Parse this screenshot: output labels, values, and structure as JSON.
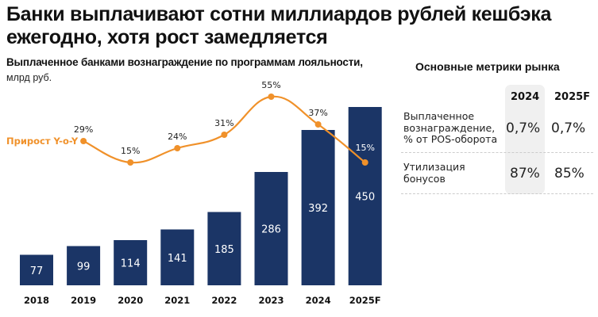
{
  "header": {
    "title": "Банки выплачивают сотни миллиардов рублей кешбэка ежегодно, хотя рост замедляется",
    "subtitle": "Выплаченное банками вознаграждение по программам лояльности,",
    "unit": "млрд руб."
  },
  "chart_data": {
    "type": "bar",
    "title": "Выплаченное банками вознаграждение по программам лояльности, млрд руб.",
    "xlabel": "",
    "ylabel": "млрд руб.",
    "categories": [
      "2018",
      "2019",
      "2020",
      "2021",
      "2022",
      "2023",
      "2024",
      "2025F"
    ],
    "series": [
      {
        "name": "Вознаграждение",
        "type": "bar",
        "values": [
          77,
          99,
          114,
          141,
          185,
          286,
          392,
          450
        ],
        "labels": [
          "77",
          "99",
          "114",
          "141",
          "185",
          "286",
          "392",
          "450"
        ],
        "color": "#1b3566"
      },
      {
        "name": "Прирост Y-o-Y",
        "type": "line",
        "values": [
          29,
          15,
          24,
          31,
          55,
          37,
          15
        ],
        "x": [
          "2019",
          "2020",
          "2021",
          "2022",
          "2023",
          "2024",
          "2025F"
        ],
        "labels": [
          "29%",
          "15%",
          "24%",
          "31%",
          "55%",
          "37%",
          "15%"
        ],
        "color": "#f0912a"
      }
    ],
    "ylim": [
      0,
      450
    ],
    "grid": false,
    "legend": "left"
  },
  "legend": {
    "growth_label": "Прирост Y-o-Y"
  },
  "metrics": {
    "title": "Основные метрики рынка",
    "columns": [
      "2024",
      "2025F"
    ],
    "rows": [
      {
        "label": [
          "Выплаченное",
          "вознаграждение,",
          "% от POS-оборота"
        ],
        "values": [
          "0,7%",
          "0,7%"
        ]
      },
      {
        "label": [
          "Утилизация",
          "бонусов"
        ],
        "values": [
          "87%",
          "85%"
        ]
      }
    ]
  },
  "colors": {
    "bar": "#1b3566",
    "line": "#f0912a",
    "highlight": "#f0f0f0"
  }
}
